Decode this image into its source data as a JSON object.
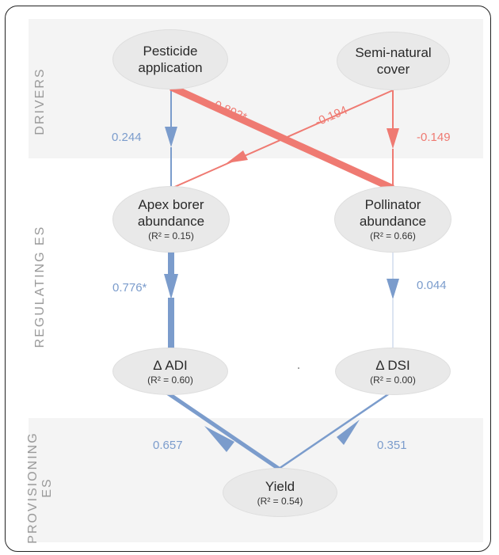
{
  "bands": {
    "drivers": "DRIVERS",
    "regulating": "REGULATING ES",
    "provisioning_line1": "PROVISIONING",
    "provisioning_line2": "ES"
  },
  "nodes": {
    "pesticide": {
      "line1": "Pesticide",
      "line2": "application"
    },
    "seminatural": {
      "line1": "Semi-natural",
      "line2": "cover"
    },
    "apex": {
      "line1": "Apex borer",
      "line2": "abundance",
      "r2": "(R² = 0.15)"
    },
    "pollinator": {
      "line1": "Pollinator",
      "line2": "abundance",
      "r2": "(R² = 0.66)"
    },
    "adi": {
      "line1": "Δ ADI",
      "r2": "(R² = 0.60)"
    },
    "dsi": {
      "line1": "Δ DSI",
      "r2": "(R² = 0.00)"
    },
    "yield": {
      "line1": "Yield",
      "r2": "(R² = 0.54)"
    }
  },
  "paths": {
    "pesticide_to_apex": "0.244",
    "pesticide_to_pollinator": "-0.892*",
    "seminatural_to_apex": "-0.194",
    "seminatural_to_pollinator": "-0.149",
    "apex_to_adi": "0.776*",
    "pollinator_to_dsi": "0.044",
    "adi_to_yield": "0.657",
    "dsi_to_yield": "0.351"
  },
  "colors": {
    "positive": "#7b9ccc",
    "negative": "#ef7a72",
    "band": "#f4f4f4",
    "node": "#e9e9e9"
  }
}
